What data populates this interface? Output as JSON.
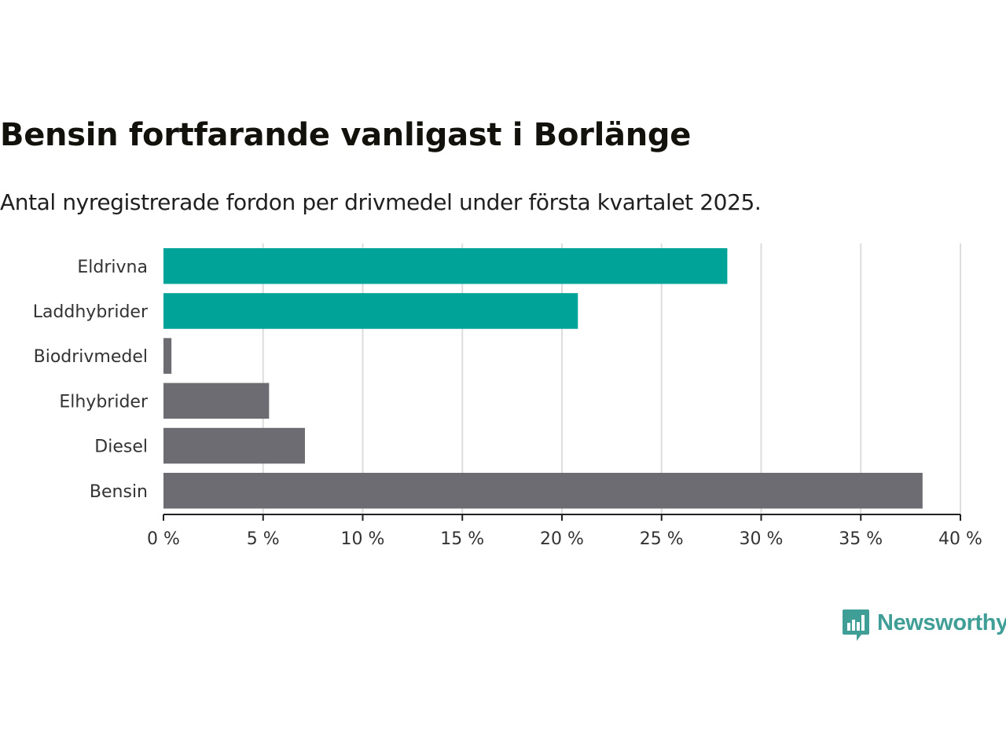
{
  "title": "Bensin fortfarande vanligast i Borlänge",
  "subtitle": "Antal nyregistrerade fordon per drivmedel under första kvartalet 2025.",
  "brand": {
    "name": "Newsworthy",
    "color": "#3f9e95",
    "icon": "newsworthy-logo-icon"
  },
  "colors": {
    "highlight": "#00a398",
    "default": "#6e6c73",
    "grid": "#dddddd",
    "axis": "#222222"
  },
  "chart_data": {
    "type": "bar",
    "orientation": "horizontal",
    "categories": [
      "Eldrivna",
      "Laddhybrider",
      "Biodrivmedel",
      "Elhybrider",
      "Diesel",
      "Bensin"
    ],
    "values": [
      28.3,
      20.8,
      0.4,
      5.3,
      7.1,
      38.1
    ],
    "highlighted": [
      true,
      true,
      false,
      false,
      false,
      false
    ],
    "xlim": [
      0,
      40
    ],
    "xticks": [
      0,
      5,
      10,
      15,
      20,
      25,
      30,
      35,
      40
    ],
    "xtick_labels": [
      "0 %",
      "5 %",
      "10 %",
      "15 %",
      "20 %",
      "25 %",
      "30 %",
      "35 %",
      "40 %"
    ],
    "unit": "%",
    "grid": true,
    "legend": "none"
  }
}
